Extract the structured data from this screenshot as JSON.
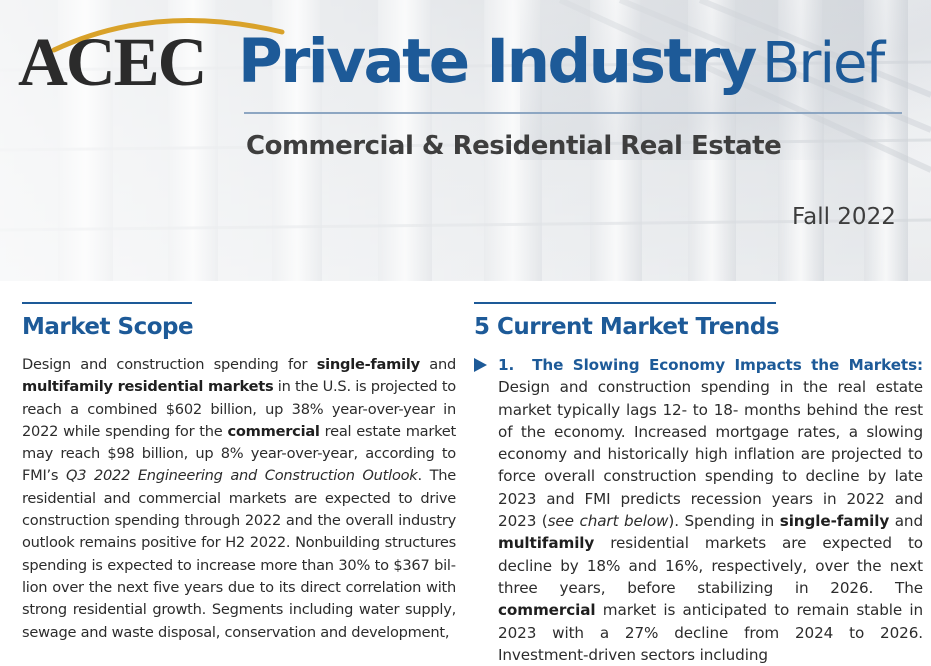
{
  "header": {
    "logo_text": "ACEC",
    "title_main": "Private Industry",
    "title_brief": "Brief",
    "subtitle": "Commercial & Residential Real Estate",
    "edition": "Fall 2022",
    "colors": {
      "brand_blue": "#1d5a98",
      "logo_arc_gold": "#d9a22a"
    }
  },
  "left": {
    "heading": "Market Scope",
    "para": {
      "t1": "Design and construction spending for ",
      "b1": "single-family",
      "t2": " and ",
      "b2": "multifamily residential markets",
      "t3": " in the U.S. is projected to reach a combined $602 billion, up 38% year-over-year in 2022 while spending for the ",
      "b3": "commercial",
      "t4": " real estate market may reach $98 billion, up 8% year-over-year, according to FMI’s ",
      "i1": "Q3 2022 Engineering and Construction Outlook",
      "t5": ". The res­idential and commercial markets are expected to drive con­struction spending through 2022 and the overall industry outlook remains positive for H2 2022. Nonbuilding structures spending is expected to increase more than 30% to $367 bil­lion over the next five years due to its direct correlation with strong residential growth. Segments including water supply, sewage and waste disposal, conservation and development,"
    }
  },
  "right": {
    "heading": "5 Current Market Trends",
    "item1": {
      "number": "1.",
      "heading": "The Slowing Economy Impacts the Markets:",
      "t1": " Design and construction spending in the real estate market typically lags 12- to 18- months behind the rest of the economy. Increased mortgage rates, a slowing economy and historically high inflation are projected to force overall construction spending to decline by late 2023 and FMI predicts recession years in 2022 and 2023 (",
      "i1": "see chart below",
      "t2": "). Spending in ",
      "b1": "single-family",
      "t3": " and ",
      "b2": "multifamily",
      "t4": " residential markets are expected to decline by 18% and 16%, respectively, over the next three years, before stabilizing in 2026. The ",
      "b3": "commercial",
      "t5": " market is anticipated to remain stable in 2023 with a 27% decline from 2024 to 2026. Investment-driven sectors including"
    }
  }
}
